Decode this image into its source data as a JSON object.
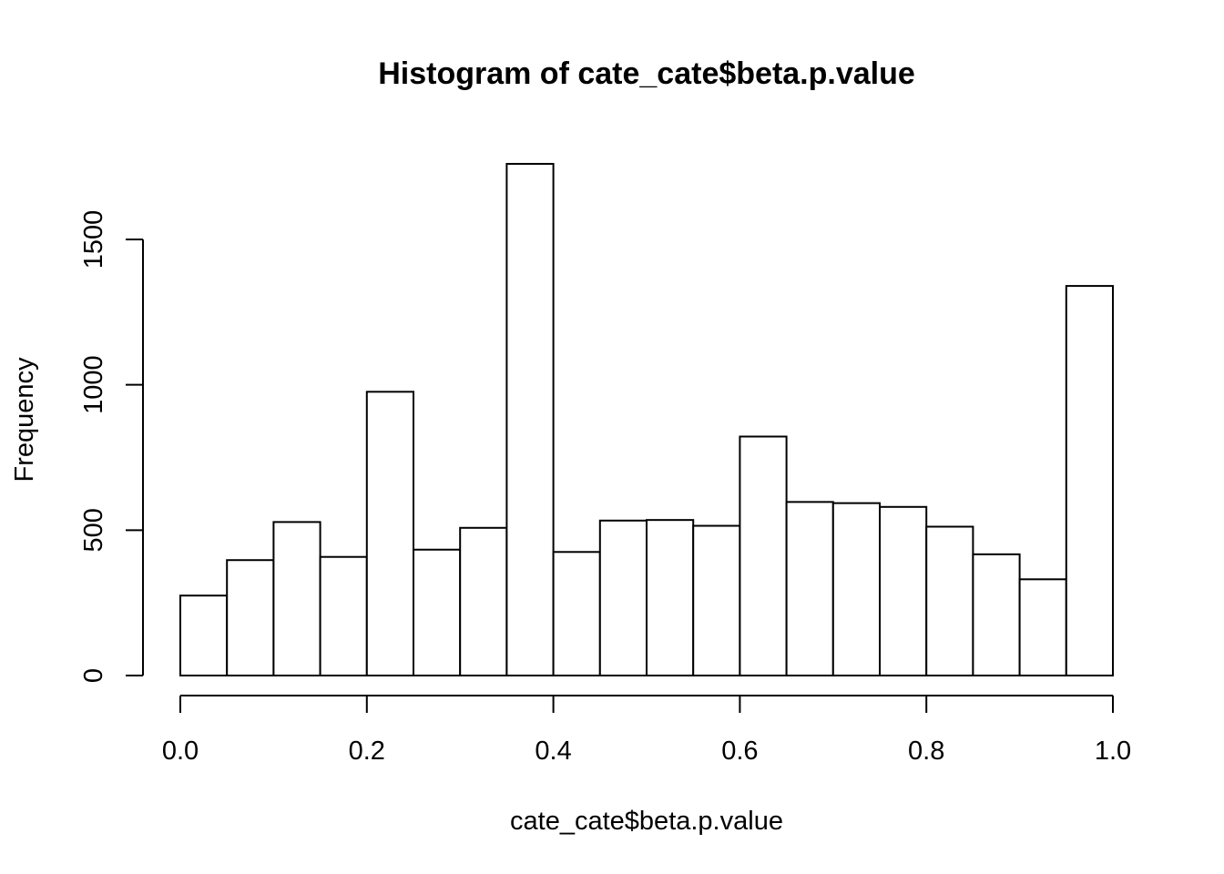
{
  "chart_data": {
    "type": "bar",
    "title": "Histogram of cate_cate$beta.p.value",
    "xlabel": "cate_cate$beta.p.value",
    "ylabel": "Frequency",
    "bin_width": 0.05,
    "bins": [
      {
        "start": 0.0,
        "end": 0.05,
        "count": 275
      },
      {
        "start": 0.05,
        "end": 0.1,
        "count": 397
      },
      {
        "start": 0.1,
        "end": 0.15,
        "count": 528
      },
      {
        "start": 0.15,
        "end": 0.2,
        "count": 408
      },
      {
        "start": 0.2,
        "end": 0.25,
        "count": 976
      },
      {
        "start": 0.25,
        "end": 0.3,
        "count": 433
      },
      {
        "start": 0.3,
        "end": 0.35,
        "count": 508
      },
      {
        "start": 0.35,
        "end": 0.4,
        "count": 1760
      },
      {
        "start": 0.4,
        "end": 0.45,
        "count": 425
      },
      {
        "start": 0.45,
        "end": 0.5,
        "count": 533
      },
      {
        "start": 0.5,
        "end": 0.55,
        "count": 535
      },
      {
        "start": 0.55,
        "end": 0.6,
        "count": 515
      },
      {
        "start": 0.6,
        "end": 0.65,
        "count": 822
      },
      {
        "start": 0.65,
        "end": 0.7,
        "count": 597
      },
      {
        "start": 0.7,
        "end": 0.75,
        "count": 593
      },
      {
        "start": 0.75,
        "end": 0.8,
        "count": 580
      },
      {
        "start": 0.8,
        "end": 0.85,
        "count": 512
      },
      {
        "start": 0.85,
        "end": 0.9,
        "count": 417
      },
      {
        "start": 0.9,
        "end": 0.95,
        "count": 331
      },
      {
        "start": 0.95,
        "end": 1.0,
        "count": 1340
      }
    ],
    "xlim": [
      0,
      1
    ],
    "ylim": [
      0,
      1760
    ],
    "x_ticks": [
      0.0,
      0.2,
      0.4,
      0.6,
      0.8,
      1.0
    ],
    "x_tick_labels": [
      "0.0",
      "0.2",
      "0.4",
      "0.6",
      "0.8",
      "1.0"
    ],
    "y_ticks": [
      0,
      500,
      1000,
      1500
    ],
    "y_tick_labels": [
      "0",
      "500",
      "1000",
      "1500"
    ],
    "grid": false,
    "legend": "none",
    "bar_fill": "#ffffff",
    "bar_stroke": "#000000"
  }
}
